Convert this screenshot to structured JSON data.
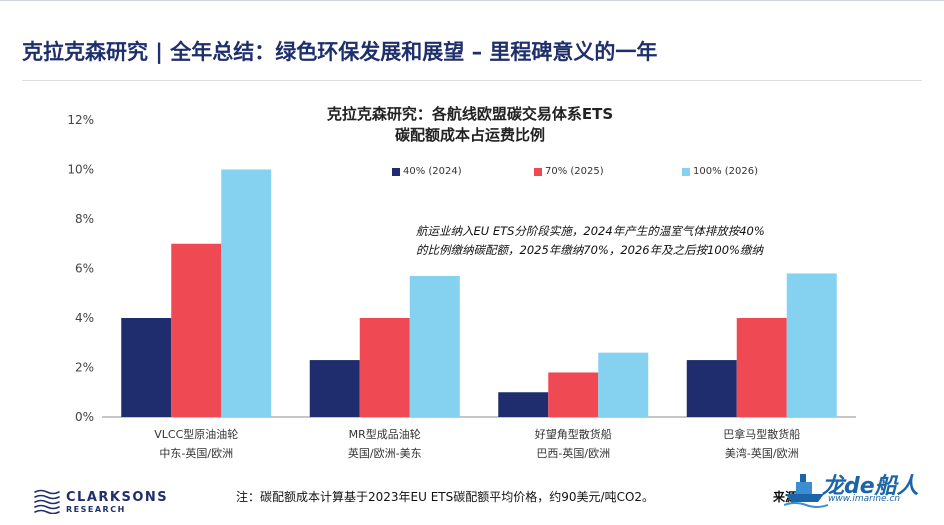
{
  "page": {
    "title": "克拉克森研究 | 全年总结：绿色环保发展和展望 – 里程碑意义的一年"
  },
  "chart_data": {
    "type": "bar",
    "title_lines": [
      "克拉克森研究：各航线欧盟碳交易体系ETS",
      "碳配额成本占运费比例"
    ],
    "categories": [
      {
        "name": "VLCC型原油油轮",
        "route": "中东-英国/欧洲"
      },
      {
        "name": "MR型成品油轮",
        "route": "英国/欧洲-美东"
      },
      {
        "name": "好望角型散货船",
        "route": "巴西-英国/欧洲"
      },
      {
        "name": "巴拿马型散货船",
        "route": "美湾-英国/欧洲"
      }
    ],
    "series": [
      {
        "name": "40% (2024)",
        "color": "#1f2d6e",
        "values": [
          4.0,
          2.3,
          1.0,
          2.3
        ]
      },
      {
        "name": "70% (2025)",
        "color": "#ef4a54",
        "values": [
          7.0,
          4.0,
          1.8,
          4.0
        ]
      },
      {
        "name": "100% (2026)",
        "color": "#85d1f0",
        "values": [
          10.0,
          5.7,
          2.6,
          5.8
        ]
      }
    ],
    "y_ticks": [
      "0%",
      "2%",
      "4%",
      "6%",
      "8%",
      "10%",
      "12%"
    ],
    "ylim": [
      0,
      12
    ],
    "grid": false,
    "legend_position": "top-right",
    "annotation_lines": [
      "航运业纳入EU ETS分阶段实施，2024年产生的温室气体排放按40%",
      "的比例缴纳碳配额，2025年缴纳70%，2026年及之后按100%缴纳"
    ]
  },
  "footer": {
    "logo_line1": "CLARKSONS",
    "logo_line2": "RESEARCH",
    "note": "注：碳配额成本计算基于2023年EU ETS碳配额平均价格，约90美元/吨CO2。",
    "source_label": "来源"
  },
  "watermark": {
    "text": "龙de船人",
    "url": "www.imarine.cn"
  }
}
